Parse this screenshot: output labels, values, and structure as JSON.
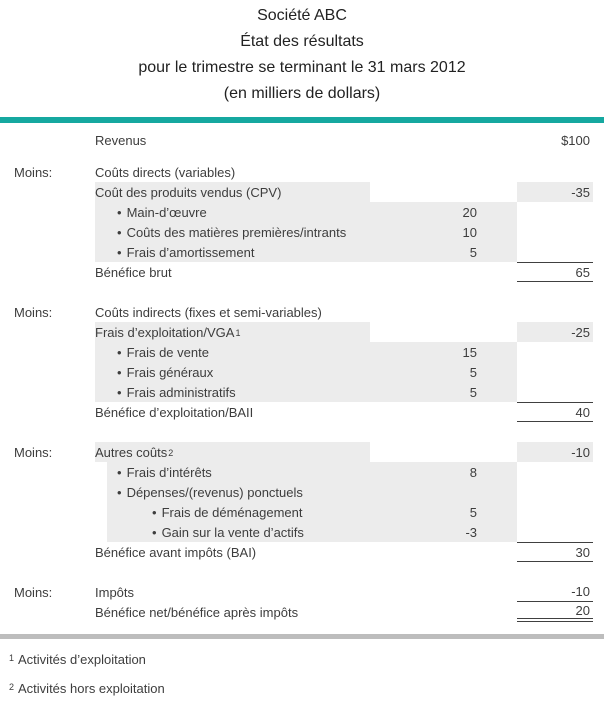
{
  "header": {
    "company": "Société ABC",
    "title": "État des résultats",
    "period": "pour le trimestre se terminant le 31 mars 2012",
    "units": "(en milliers de dollars)"
  },
  "colors": {
    "accent_bar": "#16A8A0",
    "row_shade": "#ECECEC",
    "bottom_divider": "#BDBDBD",
    "rule_lines": "#404040",
    "body_text": "#3D3D3D"
  },
  "bullet_char": "•",
  "statement": {
    "rows": [
      {
        "type": "revenue",
        "desc": "Revenus",
        "val": "$100"
      },
      {
        "type": "section",
        "label": "Moins:",
        "desc": "Coûts directs (variables)"
      },
      {
        "type": "cost-head",
        "desc": "Coût des produits vendus (CPV)",
        "val": "-35"
      },
      {
        "type": "detail",
        "level": 1,
        "desc": "Main-d’œuvre",
        "mid": "20"
      },
      {
        "type": "detail",
        "level": 1,
        "desc": "Coûts des matières premières/intrants",
        "mid": "10"
      },
      {
        "type": "detail",
        "level": 1,
        "desc": "Frais d’amortissement",
        "mid": "5"
      },
      {
        "type": "subtotal",
        "desc": "Bénéfice brut",
        "val": "65"
      },
      {
        "type": "spacer"
      },
      {
        "type": "section",
        "label": "Moins:",
        "desc": "Coûts indirects (fixes et semi-variables)"
      },
      {
        "type": "cost-head",
        "desc": "Frais d’exploitation/VGA",
        "sup": "1",
        "val": "-25"
      },
      {
        "type": "detail",
        "level": 1,
        "desc": "Frais de vente",
        "mid": "15"
      },
      {
        "type": "detail",
        "level": 1,
        "desc": "Frais généraux",
        "mid": "5"
      },
      {
        "type": "detail",
        "level": 1,
        "desc": "Frais administratifs",
        "mid": "5"
      },
      {
        "type": "subtotal",
        "desc": "Bénéfice d’exploitation/BAII",
        "val": "40"
      },
      {
        "type": "spacer"
      },
      {
        "type": "cost-head",
        "label": "Moins:",
        "desc": "Autres coûts",
        "sup": "2",
        "val": "-10"
      },
      {
        "type": "detail",
        "level": 1,
        "desc": "Frais d’intérêts",
        "mid": "8",
        "shade_indent": true
      },
      {
        "type": "detail",
        "level": 1,
        "desc": "Dépenses/(revenus) ponctuels",
        "shade_indent": true
      },
      {
        "type": "detail",
        "level": 2,
        "desc": "Frais de déménagement",
        "mid": "5",
        "shade_indent": true
      },
      {
        "type": "detail",
        "level": 2,
        "desc": "Gain sur la vente d’actifs",
        "mid": "-3",
        "shade_indent": true
      },
      {
        "type": "subtotal",
        "desc": "Bénéfice avant impôts (BAI)",
        "val": "30"
      },
      {
        "type": "spacer"
      },
      {
        "type": "tax",
        "label": "Moins:",
        "desc": "Impôts",
        "val": "-10"
      },
      {
        "type": "net",
        "desc": "Bénéfice net/bénéfice après impôts",
        "val": "20"
      }
    ]
  },
  "footnotes": [
    {
      "marker": "1",
      "text": "Activités d’exploitation"
    },
    {
      "marker": "2",
      "text": "Activités hors exploitation"
    }
  ]
}
